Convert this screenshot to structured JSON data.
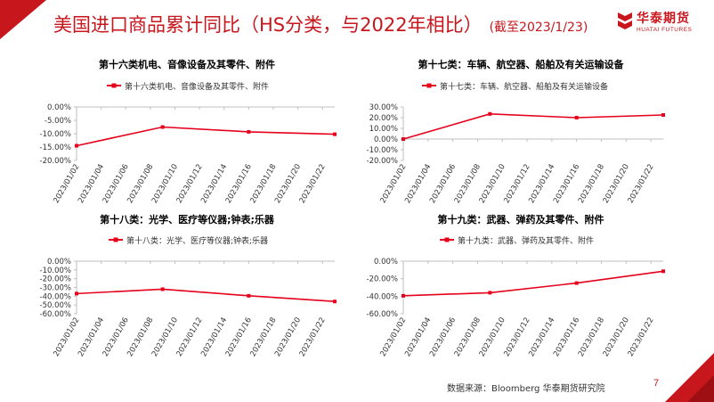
{
  "header": {
    "title": "美国进口商品累计同比（HS分类，与2022年相比）",
    "subtitle": "(截至2023/1/23)",
    "logo_cn": "华泰期货",
    "logo_en": "HUATAI FUTURES"
  },
  "footer": {
    "source": "数据来源：Bloomberg 华泰期货研究院",
    "page_number": "7"
  },
  "colors": {
    "brand_red": "#c8161d",
    "series_red": "#e5001b",
    "axis": "#bfbfbf",
    "text": "#333333"
  },
  "chart_data": [
    {
      "type": "line",
      "title": "第十六类机电、音像设备及其零件、附件",
      "legend": "第十六类机电、音像设备及其零件、附件",
      "categories": [
        "2023/01/02",
        "2023/01/04",
        "2023/01/06",
        "2023/01/08",
        "2023/01/10",
        "2023/01/12",
        "2023/01/14",
        "2023/01/16",
        "2023/01/18",
        "2023/01/20",
        "2023/01/22"
      ],
      "points": [
        {
          "x": "2023/01/02",
          "y": -14.5
        },
        {
          "x": "2023/01/09",
          "y": -7.5
        },
        {
          "x": "2023/01/16",
          "y": -9.3
        },
        {
          "x": "2023/01/23",
          "y": -10.2
        }
      ],
      "ylim": [
        -20,
        0
      ],
      "yticks": [
        0,
        -5,
        -10,
        -15,
        -20
      ],
      "yticklabels": [
        "0.00%",
        "-5.00%",
        "-10.00%",
        "-15.00%",
        "-20.00%"
      ]
    },
    {
      "type": "line",
      "title": "第十七类：车辆、航空器、船舶及有关运输设备",
      "legend": "第十七类：车辆、航空器、船舶及有关运输设备",
      "categories": [
        "2023/01/02",
        "2023/01/04",
        "2023/01/06",
        "2023/01/08",
        "2023/01/10",
        "2023/01/12",
        "2023/01/14",
        "2023/01/16",
        "2023/01/18",
        "2023/01/20",
        "2023/01/22"
      ],
      "points": [
        {
          "x": "2023/01/02",
          "y": 0
        },
        {
          "x": "2023/01/09",
          "y": 23.5
        },
        {
          "x": "2023/01/16",
          "y": 20.0
        },
        {
          "x": "2023/01/23",
          "y": 22.5
        }
      ],
      "ylim": [
        -20,
        30
      ],
      "yticks": [
        30,
        20,
        10,
        0,
        -10,
        -20
      ],
      "yticklabels": [
        "30.00%",
        "20.00%",
        "10.00%",
        "0.00%",
        "-10.00%",
        "-20.00%"
      ]
    },
    {
      "type": "line",
      "title": "第十八类：光学、医疗等仪器;钟表;乐器",
      "legend": "第十八类：光学、医疗等仪器;钟表;乐器",
      "categories": [
        "2023/01/02",
        "2023/01/04",
        "2023/01/06",
        "2023/01/08",
        "2023/01/10",
        "2023/01/12",
        "2023/01/14",
        "2023/01/16",
        "2023/01/18",
        "2023/01/20",
        "2023/01/22"
      ],
      "points": [
        {
          "x": "2023/01/02",
          "y": -37
        },
        {
          "x": "2023/01/09",
          "y": -32
        },
        {
          "x": "2023/01/16",
          "y": -39.5
        },
        {
          "x": "2023/01/23",
          "y": -46
        }
      ],
      "ylim": [
        -60,
        0
      ],
      "yticks": [
        0,
        -10,
        -20,
        -30,
        -40,
        -50,
        -60
      ],
      "yticklabels": [
        "0.00%",
        "-10.00%",
        "-20.00%",
        "-30.00%",
        "-40.00%",
        "-50.00%",
        "-60.00%"
      ]
    },
    {
      "type": "line",
      "title": "第十九类：武器、弹药及其零件、附件",
      "legend": "第十九类：武器、弹药及其零件、附件",
      "categories": [
        "2023/01/02",
        "2023/01/04",
        "2023/01/06",
        "2023/01/08",
        "2023/01/10",
        "2023/01/12",
        "2023/01/14",
        "2023/01/16",
        "2023/01/18",
        "2023/01/20",
        "2023/01/22"
      ],
      "points": [
        {
          "x": "2023/01/02",
          "y": -39.5
        },
        {
          "x": "2023/01/09",
          "y": -36
        },
        {
          "x": "2023/01/16",
          "y": -25
        },
        {
          "x": "2023/01/23",
          "y": -11.5
        }
      ],
      "ylim": [
        -60,
        0
      ],
      "yticks": [
        0,
        -20,
        -40,
        -60
      ],
      "yticklabels": [
        "0.00%",
        "-20.00%",
        "-40.00%",
        "-60.00%"
      ]
    }
  ]
}
